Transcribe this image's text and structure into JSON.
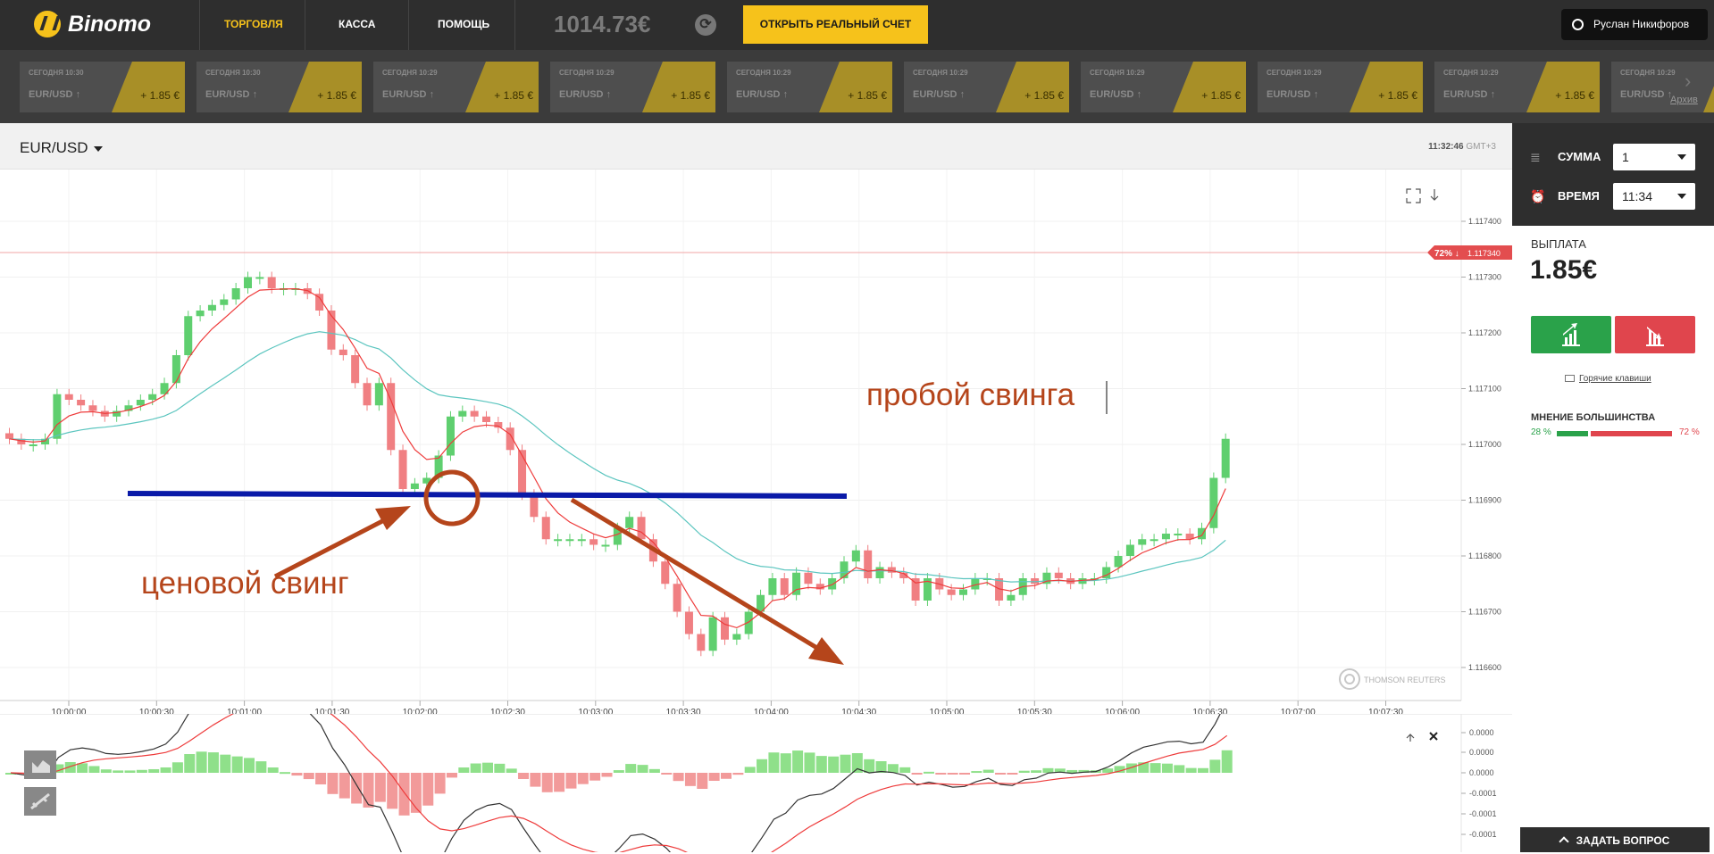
{
  "header": {
    "brand": "Binomo",
    "nav": [
      "ТОРГОВЛЯ",
      "КАССА",
      "ПОМОЩЬ"
    ],
    "balance": "1014.73€",
    "real_account_button": "ОТКРЫТЬ РЕАЛЬНЫЙ СЧЕТ",
    "user_name": "Руслан Никифоров"
  },
  "ticker": {
    "tiles": [
      {
        "time": "СЕГОДНЯ 10:30",
        "pair": "EUR/USD",
        "payout": "+ 1.85 €"
      },
      {
        "time": "СЕГОДНЯ 10:30",
        "pair": "EUR/USD",
        "payout": "+ 1.85 €"
      },
      {
        "time": "СЕГОДНЯ 10:29",
        "pair": "EUR/USD",
        "payout": "+ 1.85 €"
      },
      {
        "time": "СЕГОДНЯ 10:29",
        "pair": "EUR/USD",
        "payout": "+ 1.85 €"
      },
      {
        "time": "СЕГОДНЯ 10:29",
        "pair": "EUR/USD",
        "payout": "+ 1.85 €"
      },
      {
        "time": "СЕГОДНЯ 10:29",
        "pair": "EUR/USD",
        "payout": "+ 1.85 €"
      },
      {
        "time": "СЕГОДНЯ 10:29",
        "pair": "EUR/USD",
        "payout": "+ 1.85 €"
      },
      {
        "time": "СЕГОДНЯ 10:29",
        "pair": "EUR/USD",
        "payout": "+ 1.85 €"
      },
      {
        "time": "СЕГОДНЯ 10:29",
        "pair": "EUR/USD",
        "payout": "+ 1.85 €"
      },
      {
        "time": "СЕГОДНЯ 10:29",
        "pair": "EUR/USD",
        "payout": "+ 1.85 €"
      }
    ],
    "archive_link": "Архив"
  },
  "chart": {
    "pair": "EUR/USD",
    "time": "11:32:46",
    "timezone": "GMT+3",
    "price_levels": [
      "1.117400",
      "1.117300",
      "1.117200",
      "1.117100",
      "1.117000",
      "1.116900",
      "1.116800",
      "1.116700",
      "1.116600"
    ],
    "time_labels": [
      "10:00:00",
      "10:00:30",
      "10:01:00",
      "10:01:30",
      "10:02:00",
      "10:02:30",
      "10:03:00",
      "10:03:30",
      "10:04:00",
      "10:04:30",
      "10:05:00",
      "10:05:30",
      "10:06:00",
      "10:06:30",
      "10:07:00",
      "10:07:30"
    ],
    "strike_label": "72% ↓",
    "strike_price": "1.117340",
    "watermark": "THOMSON REUTERS",
    "annotation_swing": "ценовой свинг",
    "annotation_break": "пробой свинга",
    "osc_levels": [
      "0.0000",
      "0.0000",
      "0.0000",
      "-0.0001",
      "-0.0001",
      "-0.0001"
    ],
    "colors": {
      "up": "#5fcf6f",
      "down": "#f07f82",
      "fast_ma": "#ee3b3b",
      "slow_ma": "#5bc5bf",
      "annotation": "#b5451b",
      "swing_line": "#0a1aa8"
    }
  },
  "trade_panel": {
    "amount_label": "СУММА",
    "amount_value": "1",
    "time_label": "ВРЕМЯ",
    "time_value": "11:34",
    "payout_label": "ВЫПЛАТА",
    "payout_value": "1.85€",
    "hotkeys": "Горячие клавиши",
    "majority_label": "МНЕНИЕ БОЛЬШИНСТВА",
    "majority_up": "28 %",
    "majority_down": "72 %",
    "majority_up_fraction": 0.28,
    "ask_button": "ЗАДАТЬ ВОПРОС"
  }
}
